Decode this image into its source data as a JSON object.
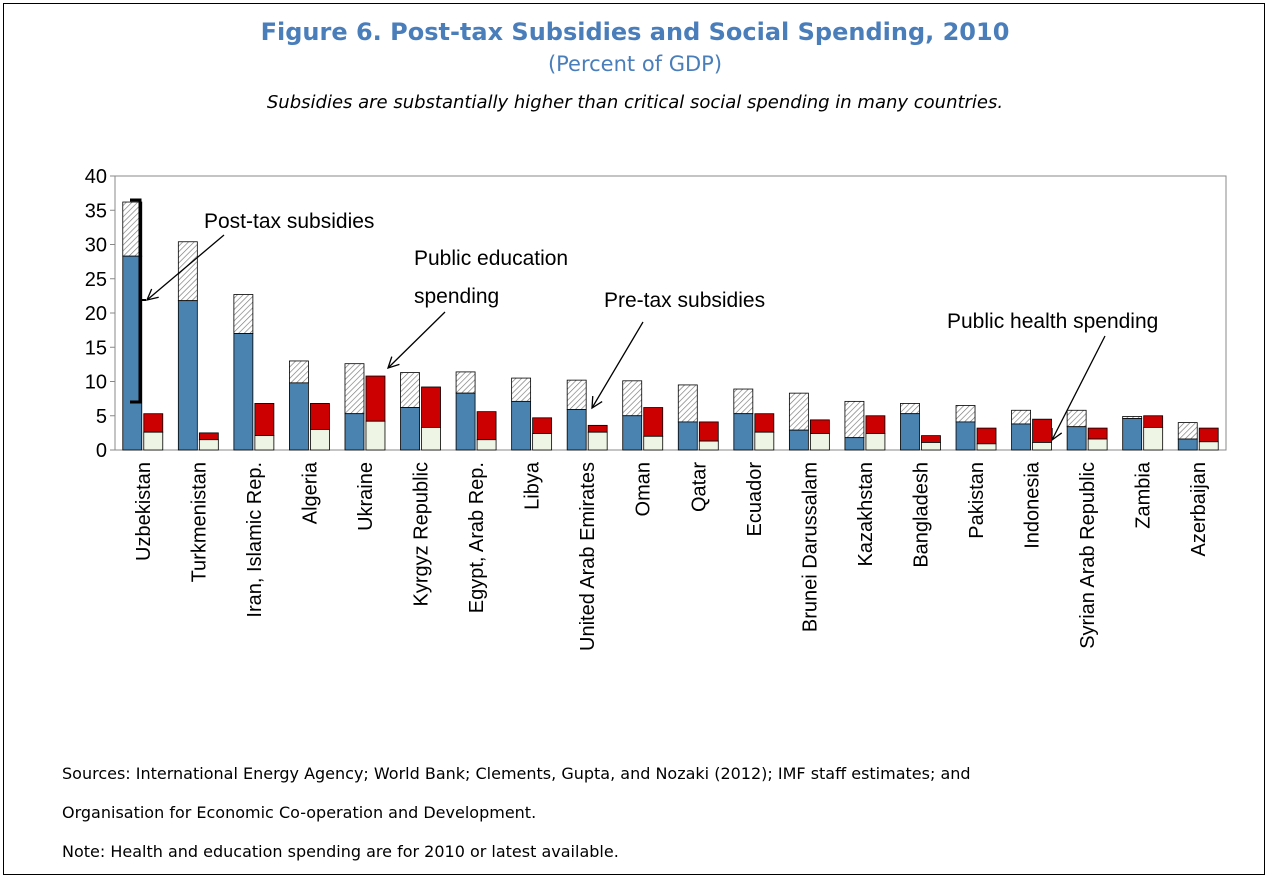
{
  "title": "Figure 6. Post-tax Subsidies and Social Spending, 2010",
  "subtitle": "(Percent of GDP)",
  "caption": "Subsidies are substantially higher than critical social spending in many countries.",
  "notes": {
    "sources_line1": "Sources: International Energy Agency; World Bank; Clements, Gupta, and Nozaki (2012); IMF staff estimates; and",
    "sources_line2": "Organisation for Economic Co-operation and Development.",
    "note": "Note: Health and education spending are for 2010 or latest available."
  },
  "colors": {
    "pretax": "#4a82b0",
    "posttax_hatch": "#888888",
    "education": "#cc0000",
    "health": "#eef5e4",
    "title": "#4a7ebb"
  },
  "chart_data": {
    "type": "bar",
    "stacked": true,
    "ylim": [
      0,
      40
    ],
    "yticks": [
      0,
      5,
      10,
      15,
      20,
      25,
      30,
      35,
      40
    ],
    "grid": false,
    "categories": [
      "Uzbekistan",
      "Turkmenistan",
      "Iran, Islamic Rep.",
      "Algeria",
      "Ukraine",
      "Kyrgyz Republic",
      "Egypt, Arab Rep.",
      "Libya",
      "United Arab Emirates",
      "Oman",
      "Qatar",
      "Ecuador",
      "Brunei Darussalam",
      "Kazakhstan",
      "Bangladesh",
      "Pakistan",
      "Indonesia",
      "Syrian Arab Republic",
      "Zambia",
      "Azerbaijan"
    ],
    "subsidy_series": [
      {
        "name": "Pre-tax subsidies",
        "values": [
          28.3,
          21.8,
          17.0,
          9.8,
          5.3,
          6.2,
          8.3,
          7.1,
          5.9,
          5.0,
          4.1,
          5.3,
          2.9,
          1.8,
          5.3,
          4.1,
          3.8,
          3.4,
          4.6,
          1.6
        ]
      },
      {
        "name": "Post-tax subsidies",
        "values": [
          36.2,
          30.4,
          22.7,
          13.0,
          12.6,
          11.3,
          11.4,
          10.5,
          10.2,
          10.1,
          9.5,
          8.9,
          8.3,
          7.1,
          6.8,
          6.5,
          5.8,
          5.8,
          4.9,
          4.0
        ]
      }
    ],
    "spending_series": [
      {
        "name": "Public health spending",
        "values": [
          2.6,
          1.5,
          2.1,
          3.0,
          4.2,
          3.3,
          1.5,
          2.4,
          2.6,
          2.0,
          1.3,
          2.6,
          2.4,
          2.4,
          1.1,
          0.9,
          1.1,
          1.6,
          3.3,
          1.2
        ]
      },
      {
        "name": "Public education spending",
        "values": [
          5.3,
          2.5,
          6.8,
          6.8,
          10.8,
          9.2,
          5.6,
          4.7,
          3.6,
          6.2,
          4.1,
          5.3,
          4.4,
          5.0,
          2.1,
          3.2,
          4.5,
          3.2,
          5.0,
          3.2
        ]
      }
    ],
    "annotations": [
      {
        "id": "posttax",
        "text": "Post-tax subsidies"
      },
      {
        "id": "education",
        "text": [
          "Public education",
          "spending"
        ]
      },
      {
        "id": "pretax",
        "text": "Pre-tax subsidies"
      },
      {
        "id": "health",
        "text": "Public health spending"
      }
    ]
  }
}
